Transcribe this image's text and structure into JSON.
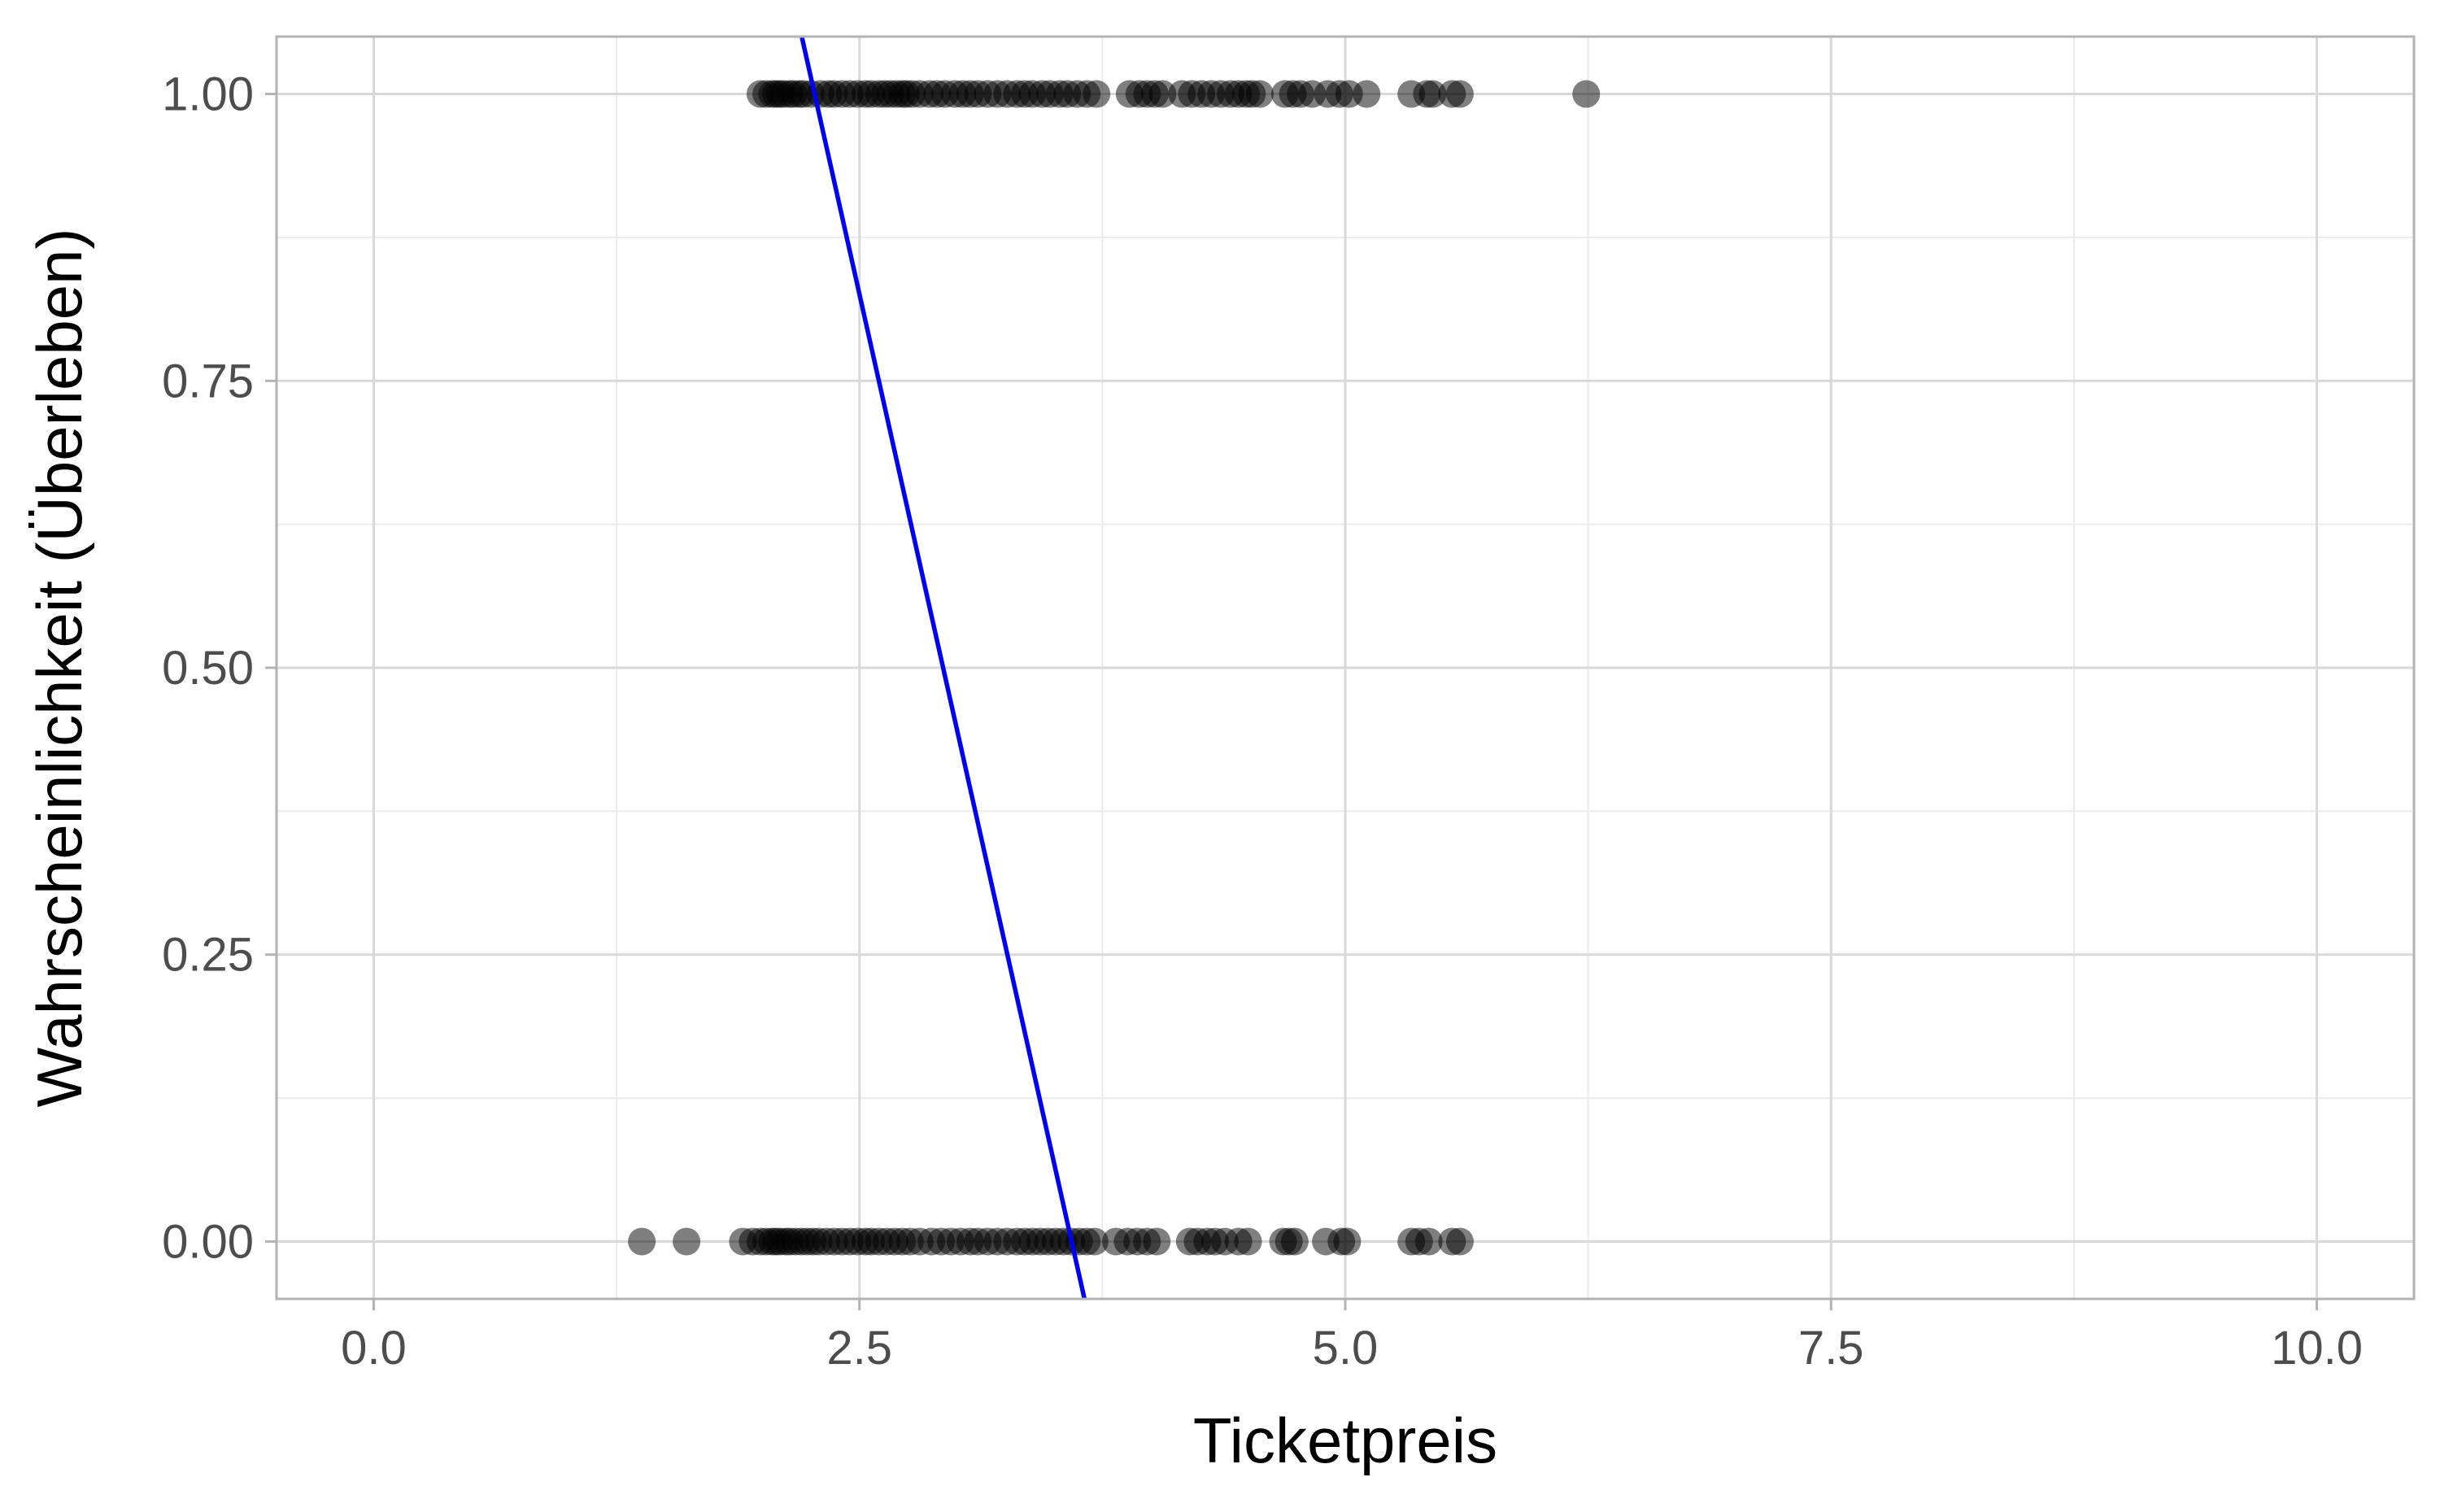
{
  "chart_data": {
    "type": "scatter",
    "title": "",
    "xlabel": "Ticketpreis",
    "ylabel": "Wahrscheinlichkeit (Überleben)",
    "xlim": [
      -0.5,
      10.5
    ],
    "ylim": [
      -0.05,
      1.05
    ],
    "x_ticks": [
      0,
      2.5,
      5,
      7.5,
      10
    ],
    "x_tick_labels": [
      "0.0",
      "2.5",
      "5.0",
      "7.5",
      "10.0"
    ],
    "y_ticks": [
      0,
      0.25,
      0.5,
      0.75,
      1
    ],
    "y_tick_labels": [
      "0.00",
      "0.25",
      "0.50",
      "0.75",
      "1.00"
    ],
    "grid": true,
    "legend": "none",
    "colors": {
      "points": "#000000",
      "points_opacity": 0.5,
      "fit_line": "#0000ee",
      "grid_major": "#d9d9d9",
      "grid_minor": "#ebebeb",
      "panel_border": "#b3b3b3"
    },
    "series": [
      {
        "kind": "points",
        "y": 1,
        "x": [
          1.99,
          2.02,
          2.05,
          2.07,
          2.09,
          2.11,
          2.14,
          2.16,
          2.19,
          2.21,
          2.25,
          2.3,
          2.34,
          2.37,
          2.41,
          2.45,
          2.49,
          2.53,
          2.56,
          2.6,
          2.63,
          2.66,
          2.69,
          2.72,
          2.74,
          2.77,
          2.81,
          2.86,
          2.9,
          2.94,
          2.99,
          3.03,
          3.07,
          3.11,
          3.16,
          3.21,
          3.26,
          3.31,
          3.35,
          3.39,
          3.44,
          3.48,
          3.53,
          3.57,
          3.62,
          3.67,
          3.72,
          3.89,
          3.94,
          3.98,
          4.02,
          4.06,
          4.16,
          4.21,
          4.26,
          4.31,
          4.36,
          4.41,
          4.45,
          4.49,
          4.52,
          4.56,
          4.69,
          4.73,
          4.77,
          4.83,
          4.91,
          4.97,
          5.02,
          5.11,
          5.34,
          5.42,
          5.45,
          5.55,
          5.59,
          6.24
        ]
      },
      {
        "kind": "points",
        "y": 0,
        "x": [
          1.38,
          1.61,
          1.9,
          1.95,
          1.99,
          2.02,
          2.05,
          2.07,
          2.09,
          2.12,
          2.14,
          2.17,
          2.2,
          2.23,
          2.26,
          2.29,
          2.33,
          2.37,
          2.41,
          2.45,
          2.49,
          2.53,
          2.56,
          2.6,
          2.64,
          2.68,
          2.72,
          2.76,
          2.81,
          2.87,
          2.92,
          2.97,
          3.02,
          3.07,
          3.11,
          3.16,
          3.21,
          3.26,
          3.31,
          3.35,
          3.39,
          3.43,
          3.47,
          3.51,
          3.55,
          3.59,
          3.63,
          3.67,
          3.71,
          3.82,
          3.88,
          3.93,
          3.98,
          4.03,
          4.2,
          4.24,
          4.29,
          4.33,
          4.38,
          4.45,
          4.5,
          4.68,
          4.71,
          4.74,
          4.9,
          4.98,
          5.01,
          5.34,
          5.38,
          5.43,
          5.55,
          5.59
        ]
      },
      {
        "kind": "line",
        "x": [
          2.203,
          3.658
        ],
        "y": [
          1.05,
          -0.05
        ]
      }
    ]
  }
}
